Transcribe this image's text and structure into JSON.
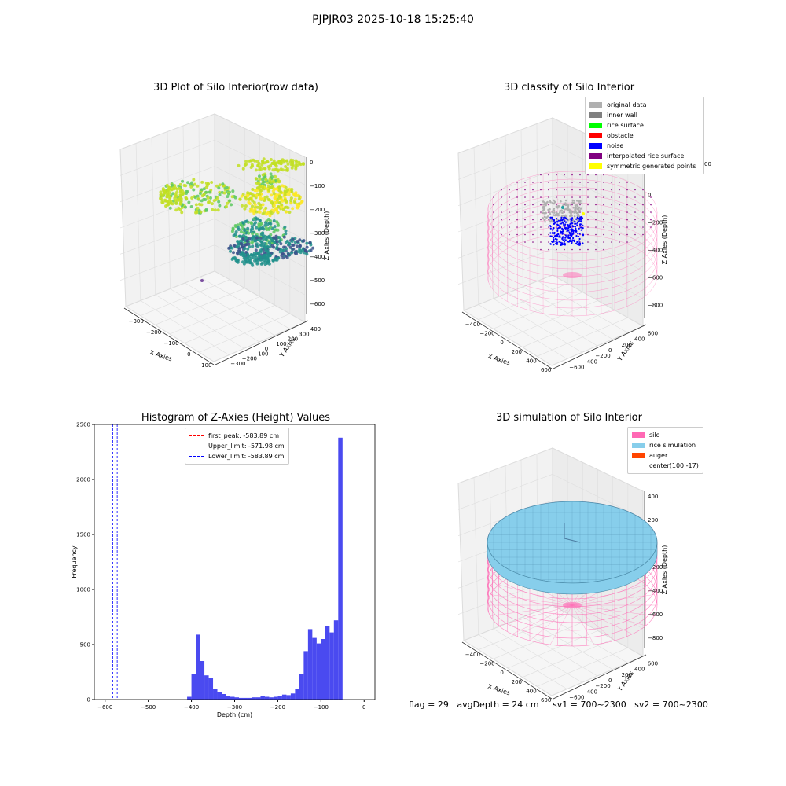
{
  "suptitle": "PJPJR03 2025-10-18 15:25:40",
  "footer": "flag = 29   avgDepth = 24 cm     sv1 = 700~2300   sv2 = 700~2300",
  "colors": {
    "silo": "#ff69b4",
    "rice": "#87ceeb",
    "auger": "#ff4500",
    "original": "#b0b0b0",
    "inner_wall": "#808080",
    "rice_surface": "#00ff00",
    "obstacle": "#ff0000",
    "noise": "#0000ff",
    "interp": "#800080",
    "sym": "#ffff00",
    "hist": "#4a4af0"
  },
  "chart_data": [
    {
      "type": "scatter",
      "title": "3D Plot of Silo Interior(row data)",
      "xlabel": "X Axies",
      "ylabel": "Y Axies",
      "zlabel": "Z Axies (Depth)",
      "x_ticks": [
        "−300",
        "−200",
        "−100",
        "0",
        "100"
      ],
      "y_ticks": [
        "400",
        "300",
        "200",
        "100",
        "0",
        "−100",
        "−200",
        "−300"
      ],
      "z_ticks": [
        "0",
        "−100",
        "−200",
        "−300",
        "−400",
        "−500",
        "−600"
      ],
      "colormap": "viridis"
    },
    {
      "type": "scatter",
      "title": "3D classify of Silo Interior",
      "xlabel": "X Axies",
      "ylabel": "Y Axies",
      "zlabel": "Z Axies (Depth)",
      "x_ticks": [
        "−400",
        "−200",
        "0",
        "200",
        "400",
        "600"
      ],
      "y_ticks": [
        "600",
        "400",
        "200",
        "0",
        "−200",
        "−400",
        "−600"
      ],
      "z_ticks": [
        "200",
        "0",
        "−200",
        "−400",
        "−600",
        "−800"
      ],
      "z_partial_tick": "00",
      "legend": [
        "original data",
        "inner wall",
        "rice surface",
        "obstacle",
        "noise",
        "interpolated rice surface",
        "symmetric generated points"
      ]
    },
    {
      "type": "bar",
      "title": "Histogram of Z-Axies (Height) Values",
      "xlabel": "Depth (cm)",
      "ylabel": "Frequency",
      "xlim": [
        -625,
        25
      ],
      "ylim": [
        0,
        2500
      ],
      "x_ticks": [
        -600,
        -500,
        -400,
        -300,
        -200,
        -100,
        0
      ],
      "x_tick_labels": [
        "−600",
        "−500",
        "−400",
        "−300",
        "−200",
        "−100",
        "0"
      ],
      "y_ticks": [
        0,
        500,
        1000,
        1500,
        2000,
        2500
      ],
      "bin_start": -410,
      "bin_width": 10,
      "values": [
        25,
        230,
        590,
        350,
        220,
        200,
        100,
        70,
        50,
        30,
        25,
        20,
        15,
        15,
        15,
        20,
        20,
        30,
        25,
        20,
        25,
        30,
        45,
        40,
        55,
        100,
        230,
        440,
        640,
        560,
        510,
        550,
        670,
        610,
        720,
        2380
      ],
      "vlines": [
        {
          "label": "first_peak: -583.89 cm",
          "x": -583.89,
          "color": "#ff0000"
        },
        {
          "label": "Upper_limit: -571.98 cm",
          "x": -571.98,
          "color": "#0000ff"
        },
        {
          "label": "Lower_limit: -583.89 cm",
          "x": -583.89,
          "color": "#0000ff"
        }
      ]
    },
    {
      "type": "scatter",
      "title": "3D simulation of Silo Interior",
      "xlabel": "X Axies",
      "ylabel": "Y Axies",
      "zlabel": "Z Axies (Depth)",
      "x_ticks": [
        "−400",
        "−200",
        "0",
        "200",
        "400",
        "600"
      ],
      "y_ticks": [
        "600",
        "400",
        "200",
        "0",
        "−200",
        "−400",
        "−600"
      ],
      "z_ticks": [
        "400",
        "200",
        "0",
        "−200",
        "−400",
        "−600",
        "−800"
      ],
      "legend": [
        "silo",
        "rice simulation",
        "auger",
        "center(100,-17)"
      ]
    }
  ]
}
